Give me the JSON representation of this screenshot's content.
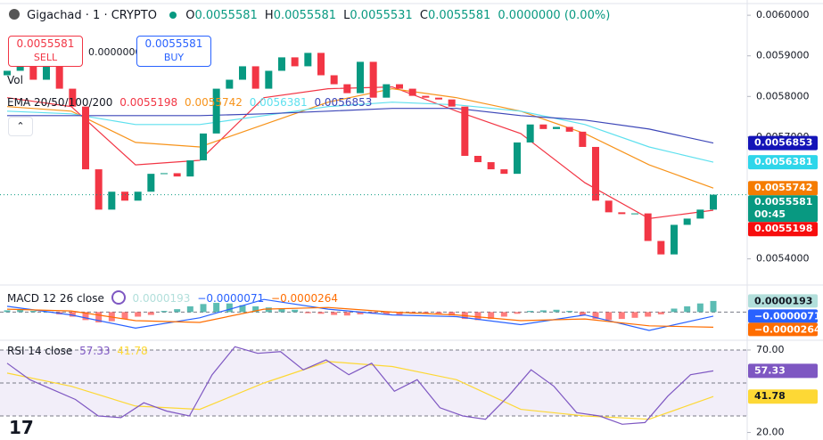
{
  "chart_data": [
    {
      "type": "candlestick",
      "title": "Gigachad · 1 · CRYPTO",
      "ohlc": [
        {
          "key": "O",
          "value": "0.0055581"
        },
        {
          "key": "H",
          "value": "0.0055581"
        },
        {
          "key": "L",
          "value": "0.0055531"
        },
        {
          "key": "C",
          "value": "0.0055581"
        }
      ],
      "change": "0.0000000 (0.00%)",
      "sell": {
        "price": "0.0055581",
        "label": "SELL"
      },
      "spread": "0.0000000",
      "buy": {
        "price": "0.0055581",
        "label": "BUY"
      },
      "volume_label": "Vol",
      "ema_label": "EMA 20/50/100/200",
      "up_color": "#089981",
      "down_color": "#f23645",
      "open": [
        0.0058522,
        0.0058632,
        0.0058743,
        0.0058412,
        0.0058853,
        0.0058191,
        0.005775,
        0.0056206,
        0.0055213,
        0.0055654,
        0.0055434,
        0.0055654,
        0.0056095,
        0.005611,
        0.0056029,
        0.0056426,
        0.0057088,
        0.0058191,
        0.0058412,
        0.0058743,
        0.0058191,
        0.0058632,
        0.0058963,
        0.0058743,
        0.0059073,
        0.0058522,
        0.0058301,
        0.0058081,
        0.0058853,
        0.005797,
        0.0058301,
        0.0058191,
        0.0058015,
        0.005797,
        0.0057926,
        0.005775,
        0.0056537,
        0.0056382,
        0.0056206,
        0.0056095,
        0.0056867,
        0.005731,
        0.0057198,
        0.005725,
        0.0057132,
        0.0056757,
        0.0055434,
        0.0055147,
        0.0055103,
        0.005512,
        0.0054441,
        0.005411,
        0.0054838,
        0.0054992,
        0.0055213
      ],
      "close": [
        0.0058632,
        0.0058743,
        0.0058412,
        0.0058853,
        0.0058191,
        0.005775,
        0.0056206,
        0.0055213,
        0.0055654,
        0.0055434,
        0.0055654,
        0.0056095,
        0.005611,
        0.0056029,
        0.0056426,
        0.0057088,
        0.0058191,
        0.0058412,
        0.0058743,
        0.0058191,
        0.0058632,
        0.0058963,
        0.0058743,
        0.0059073,
        0.0058522,
        0.0058301,
        0.0058081,
        0.0058853,
        0.005797,
        0.0058301,
        0.0058191,
        0.0058015,
        0.005797,
        0.0057926,
        0.005775,
        0.0056537,
        0.0056382,
        0.0056206,
        0.0056095,
        0.0056867,
        0.005731,
        0.0057198,
        0.005725,
        0.0057132,
        0.0056757,
        0.0055434,
        0.0055147,
        0.0055103,
        0.005512,
        0.0054441,
        0.005411,
        0.0054838,
        0.0054992,
        0.0055213,
        0.0055581
      ],
      "last_price": {
        "value": 0.0055581,
        "label": "0.0055581",
        "countdown": "00:45",
        "color": "#089981"
      },
      "series": [
        {
          "color": "#f23645",
          "label_color": "#f70d0d",
          "value_label": "0.0055198",
          "values": [
            0.005797,
            0.005775,
            0.0056316,
            0.0056426,
            0.005797,
            0.0058191,
            0.0058235,
            0.0057639,
            0.0057088,
            0.0055875,
            0.0054992,
            0.0055198
          ]
        },
        {
          "color": "#f7931a",
          "label_color": "#f57c00",
          "value_label": "0.0055742",
          "values": [
            0.005775,
            0.0057639,
            0.0056867,
            0.0056757,
            0.0057308,
            0.005786,
            0.0058191,
            0.005797,
            0.0057639,
            0.0057088,
            0.0056316,
            0.0055742
          ]
        },
        {
          "color": "#5ee0ee",
          "label_color": "#2fd6ea",
          "value_label": "0.0056381",
          "values": [
            0.0057639,
            0.0057573,
            0.0057308,
            0.0057308,
            0.0057529,
            0.005775,
            0.005786,
            0.0057794,
            0.0057639,
            0.0057308,
            0.0056757,
            0.0056381
          ]
        },
        {
          "color": "#3d47b8",
          "label_color": "#1414b8",
          "value_label": "0.0056853",
          "values": [
            0.0057529,
            0.0057529,
            0.0057529,
            0.0057529,
            0.0057573,
            0.0057639,
            0.0057705,
            0.0057705,
            0.0057529,
            0.0057419,
            0.0057198,
            0.0056853
          ]
        }
      ],
      "ylim": [
        0.00534,
        0.00602
      ],
      "yticks": [
        {
          "value": 0.006,
          "label": "0.0060000"
        },
        {
          "value": 0.0059,
          "label": "0.0059000"
        },
        {
          "value": 0.0058,
          "label": "0.0058000"
        },
        {
          "value": 0.0057,
          "label": "0.0057000"
        },
        {
          "value": 0.0054,
          "label": "0.0054000"
        }
      ]
    },
    {
      "type": "macd",
      "title": "MACD 12 26 close",
      "histogram": {
        "pos_color": "#26a69a",
        "neg_color": "#ff5252",
        "value_label": "0.0000193",
        "label_color": "#b2dfdb",
        "values": [
          3e-06,
          4e-06,
          2e-06,
          1e-06,
          -4e-06,
          -8e-06,
          -1.4e-05,
          -1.8e-05,
          -1.6e-05,
          -1.2e-05,
          -8e-06,
          -5e-06,
          2e-06,
          5e-06,
          1e-05,
          1.4e-05,
          1.6e-05,
          1.5e-05,
          1.2e-05,
          1e-05,
          8e-06,
          6e-06,
          4e-06,
          -2e-06,
          -3e-06,
          -5e-06,
          -6e-06,
          -4e-06,
          -3e-06,
          -4e-06,
          -5e-06,
          -3e-06,
          -2e-06,
          -3e-06,
          -6e-06,
          -1.2e-05,
          -1.4e-05,
          -1.2e-05,
          -8e-06,
          -3e-06,
          2e-06,
          3e-06,
          4e-06,
          2e-06,
          -6e-06,
          -1.2e-05,
          -1.4e-05,
          -1.2e-05,
          -1e-05,
          -8e-06,
          -4e-06,
          6e-06,
          1e-05,
          1.5e-05,
          1.93e-05
        ]
      },
      "series": [
        {
          "color": "#2962ff",
          "value_label": "−0.0000071",
          "values": [
            1e-05,
            -5e-06,
            -2.8e-05,
            -1e-05,
            2.2e-05,
            5e-06,
            -5e-06,
            -8e-06,
            -2.2e-05,
            -5e-06,
            -3.2e-05,
            -7.1e-06
          ]
        },
        {
          "color": "#ff6d00",
          "value_label": "−0.0000264",
          "values": [
            5e-06,
            2e-06,
            -1.5e-05,
            -1.8e-05,
            5e-06,
            8e-06,
            0,
            -5e-06,
            -1.5e-05,
            -1.2e-05,
            -2.4e-05,
            -2.64e-05
          ]
        }
      ],
      "ylim": [
        -4.6e-05,
        4.4e-05
      ]
    },
    {
      "type": "rsi",
      "title": "RSI 14 close",
      "band": [
        30,
        70
      ],
      "band_color": "rgba(126,87,194,0.1)",
      "levels": [
        70,
        50,
        30
      ],
      "series": [
        {
          "color": "#7e57c2",
          "value_label": "57.33",
          "values": [
            62,
            52,
            46,
            40,
            30,
            29,
            38,
            33,
            30,
            55,
            72,
            68,
            69,
            58,
            64,
            55,
            62,
            45,
            52,
            35,
            30,
            28,
            42,
            58,
            48,
            32,
            30,
            25,
            26,
            42,
            55,
            57.33
          ]
        },
        {
          "color": "#fdd835",
          "value_label": "41.78",
          "values": [
            56,
            48,
            36,
            34,
            50,
            63,
            60,
            52,
            34,
            30,
            28,
            41.78
          ]
        }
      ],
      "ylim": [
        17.6,
        74.3
      ],
      "yticks": [
        {
          "value": 70,
          "label": "70.00"
        },
        {
          "value": 20,
          "label": "20.00"
        }
      ]
    }
  ]
}
